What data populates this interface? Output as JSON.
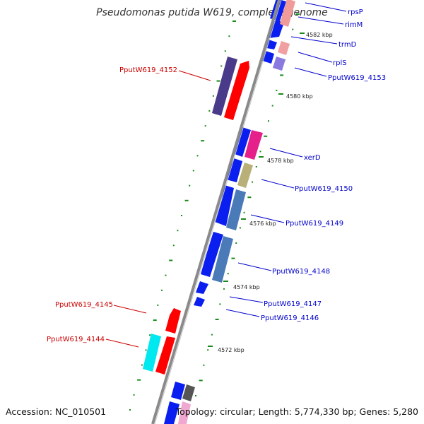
{
  "title": "Pseudomonas putida W619, complete genome",
  "footer": {
    "accession": "Accession: NC_010501",
    "topology": "Topology: circular; Length: 5,774,330 bp; Genes: 5,280"
  },
  "colors": {
    "backbone": "#8a8a8a",
    "tick": "#1a8a1a",
    "forward_label": "#cc0000",
    "reverse_label": "#0000cc"
  },
  "kbp_labels": [
    "4582 kbp",
    "4580 kbp",
    "4578 kbp",
    "4576 kbp",
    "4574 kbp",
    "4572 kbp"
  ],
  "gene_labels": {
    "rpsP": "rpsP",
    "rimM": "rimM",
    "trmD": "trmD",
    "rplS": "rplS",
    "g4153": "PputW619_4153",
    "g4152": "PputW619_4152",
    "xerD": "xerD",
    "g4150": "PputW619_4150",
    "g4149": "PputW619_4149",
    "g4148": "PputW619_4148",
    "g4147": "PputW619_4147",
    "g4146": "PputW619_4146",
    "g4145": "PputW619_4145",
    "g4144": "PputW619_4144"
  }
}
